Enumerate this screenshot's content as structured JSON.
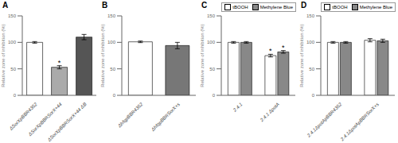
{
  "chart_data": [
    {
      "type": "bar",
      "title": "A",
      "ylabel": "Relative zone of inhibition (%)",
      "categories": [
        "ΔSorXpBBR4352",
        "ΔSorXpBBRSorX+44",
        "ΔSorXpBBRSorX+44 ΔB"
      ],
      "values": [
        100,
        53,
        110
      ],
      "errors": [
        1.5,
        3,
        5
      ],
      "colors": [
        "white",
        "#aaaaaa",
        "#555555"
      ],
      "annotations": [
        {
          "category": "ΔSorXpBBRSorX+44",
          "text": "*"
        }
      ],
      "ylim": [
        0,
        150
      ],
      "yticks": [
        0,
        50,
        100,
        150
      ],
      "grid": false
    },
    {
      "type": "bar",
      "title": "B",
      "ylabel": "Relative zone of inhibition (%)",
      "categories": [
        "ΔhfqpBBR4352",
        "ΔhfqpBBRSorX+s"
      ],
      "values": [
        101,
        94
      ],
      "errors": [
        1.5,
        6
      ],
      "colors": [
        "white",
        "#777777"
      ],
      "ylim": [
        0,
        150
      ],
      "yticks": [
        0,
        50,
        100,
        150
      ],
      "grid": false
    },
    {
      "type": "bar",
      "title": "C",
      "ylabel": "Relative zone of inhibition (%)",
      "categories": [
        "2.4.1",
        "2.4.1 ΔpotA"
      ],
      "series": [
        {
          "name": "tBOOH",
          "color": "white",
          "values": [
            100,
            75
          ],
          "errors": [
            1.5,
            2.5
          ]
        },
        {
          "name": "Methylene Blue",
          "color": "#888888",
          "values": [
            100,
            82
          ],
          "errors": [
            1.5,
            2.5
          ]
        }
      ],
      "annotations": [
        {
          "category": "2.4.1 ΔpotA",
          "series": "tBOOH",
          "text": "*"
        },
        {
          "category": "2.4.1 ΔpotA",
          "series": "Methylene Blue",
          "text": "*"
        }
      ],
      "legend": "upper right",
      "ylim": [
        0,
        150
      ],
      "yticks": [
        0,
        50,
        100,
        150
      ],
      "grid": false
    },
    {
      "type": "bar",
      "title": "D",
      "ylabel": "Relative zone of inhibition (%)",
      "categories": [
        "2.4.1ΔpotApBBR4352",
        "2.4.1ΔpotApBBRSorX+s"
      ],
      "series": [
        {
          "name": "tBOOH",
          "color": "white",
          "values": [
            100,
            104
          ],
          "errors": [
            1.5,
            3
          ]
        },
        {
          "name": "Methylene Blue",
          "color": "#888888",
          "values": [
            100,
            103
          ],
          "errors": [
            1.5,
            3
          ]
        }
      ],
      "legend": "upper right",
      "ylim": [
        0,
        150
      ],
      "yticks": [
        0,
        50,
        100,
        150
      ],
      "grid": false
    }
  ]
}
